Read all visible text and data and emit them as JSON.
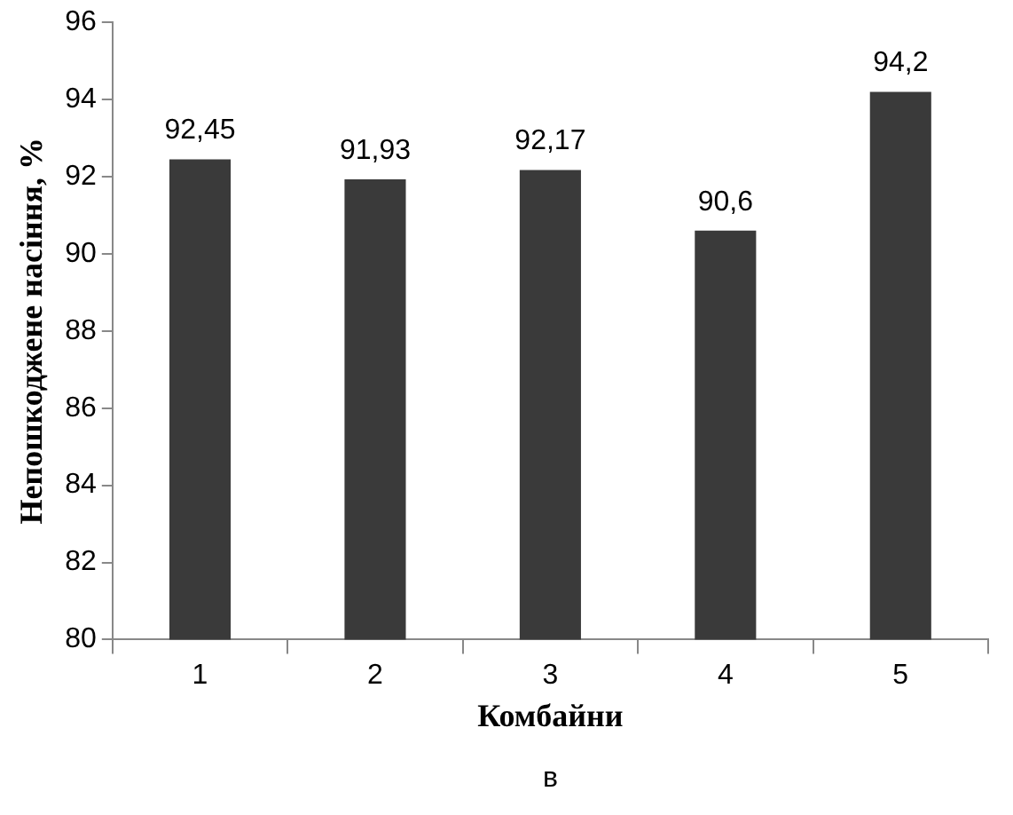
{
  "chart_data": {
    "type": "bar",
    "xlabel": "Комбайни",
    "ylabel": "Непошкоджене насіння, %",
    "categories": [
      "1",
      "2",
      "3",
      "4",
      "5"
    ],
    "values": [
      92.45,
      91.93,
      92.17,
      90.6,
      94.2
    ],
    "value_labels": [
      "92,45",
      "91,93",
      "92,17",
      "90,6",
      "94,2"
    ],
    "color": "#3a3a3a",
    "ylim": [
      80,
      96
    ],
    "yticks": [
      80,
      82,
      84,
      86,
      88,
      90,
      92,
      94,
      96
    ],
    "grid": false,
    "legend": false,
    "annotations": [
      "в"
    ]
  }
}
